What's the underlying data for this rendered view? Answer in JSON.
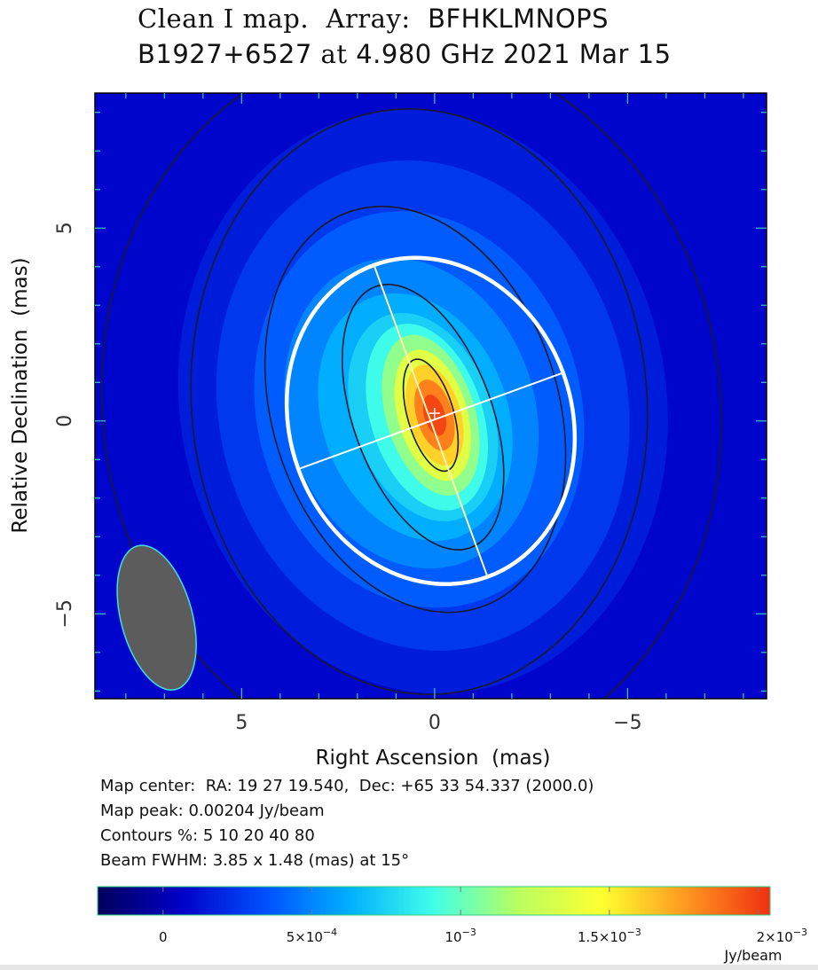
{
  "title": {
    "line1_prefix": "Clean I map.",
    "line1_array_label": "Array:",
    "line1_array": "BFHKLMNOPS",
    "source": "B1927+6527",
    "at_word": "at",
    "freq": "4.980 GHz",
    "date": "2021 Mar 15"
  },
  "info": {
    "map_center": "Map center:  RA: 19 27 19.540,  Dec: +65 33 54.337 (2000.0)",
    "map_peak": "Map peak: 0.00204 Jy/beam",
    "contours": "Contours %: 5 10 20 40 80",
    "beam": "Beam FWHM: 3.85 x 1.48 (mas) at 15°"
  },
  "chart_data": {
    "type": "heatmap",
    "xlabel": "Right Ascension  (mas)",
    "ylabel": "Relative Declination  (mas)",
    "xlim": [
      8.8,
      -8.6
    ],
    "ylim": [
      -7.2,
      8.5
    ],
    "x_ticks": [
      5,
      0,
      -5
    ],
    "x_tick_labels": [
      "5",
      "0",
      "−5"
    ],
    "y_ticks": [
      5,
      0,
      -5
    ],
    "y_tick_labels": [
      "5",
      "0",
      "−5"
    ],
    "peak_jy_per_beam": 0.00204,
    "contour_levels_percent": [
      5,
      10,
      20,
      40,
      80
    ],
    "beam": {
      "major_mas": 3.85,
      "minor_mas": 1.48,
      "pa_deg": 15,
      "center_mas": [
        7.2,
        -5.1
      ],
      "fill": "#5c5c5c",
      "edge": "#40e0e0"
    },
    "model_ellipse": {
      "center_mas": [
        0.1,
        0.0
      ],
      "major_mas": 8.6,
      "minor_mas": 7.3,
      "pa_deg": 20,
      "color": "#ffffff"
    },
    "peak_marker_mas": [
      0.0,
      0.2
    ],
    "colorbar": {
      "min": -0.00022,
      "max": 0.00204,
      "ticks": [
        0,
        0.0005,
        0.001,
        0.0015,
        0.002
      ],
      "tick_labels": [
        {
          "mant": "",
          "exp": "",
          "plain": "0"
        },
        {
          "mant": "5×10",
          "exp": "−4",
          "plain": ""
        },
        {
          "mant": "10",
          "exp": "−3",
          "plain": ""
        },
        {
          "mant": "1.5×10",
          "exp": "−3",
          "plain": ""
        },
        {
          "mant": "2×10",
          "exp": "−3",
          "plain": ""
        }
      ],
      "unit": "Jy/beam",
      "colors": [
        "#00005a",
        "#0000c8",
        "#0050ff",
        "#00b0ff",
        "#40ffe8",
        "#b8ff60",
        "#ffff30",
        "#ff9820",
        "#f03010"
      ]
    }
  }
}
